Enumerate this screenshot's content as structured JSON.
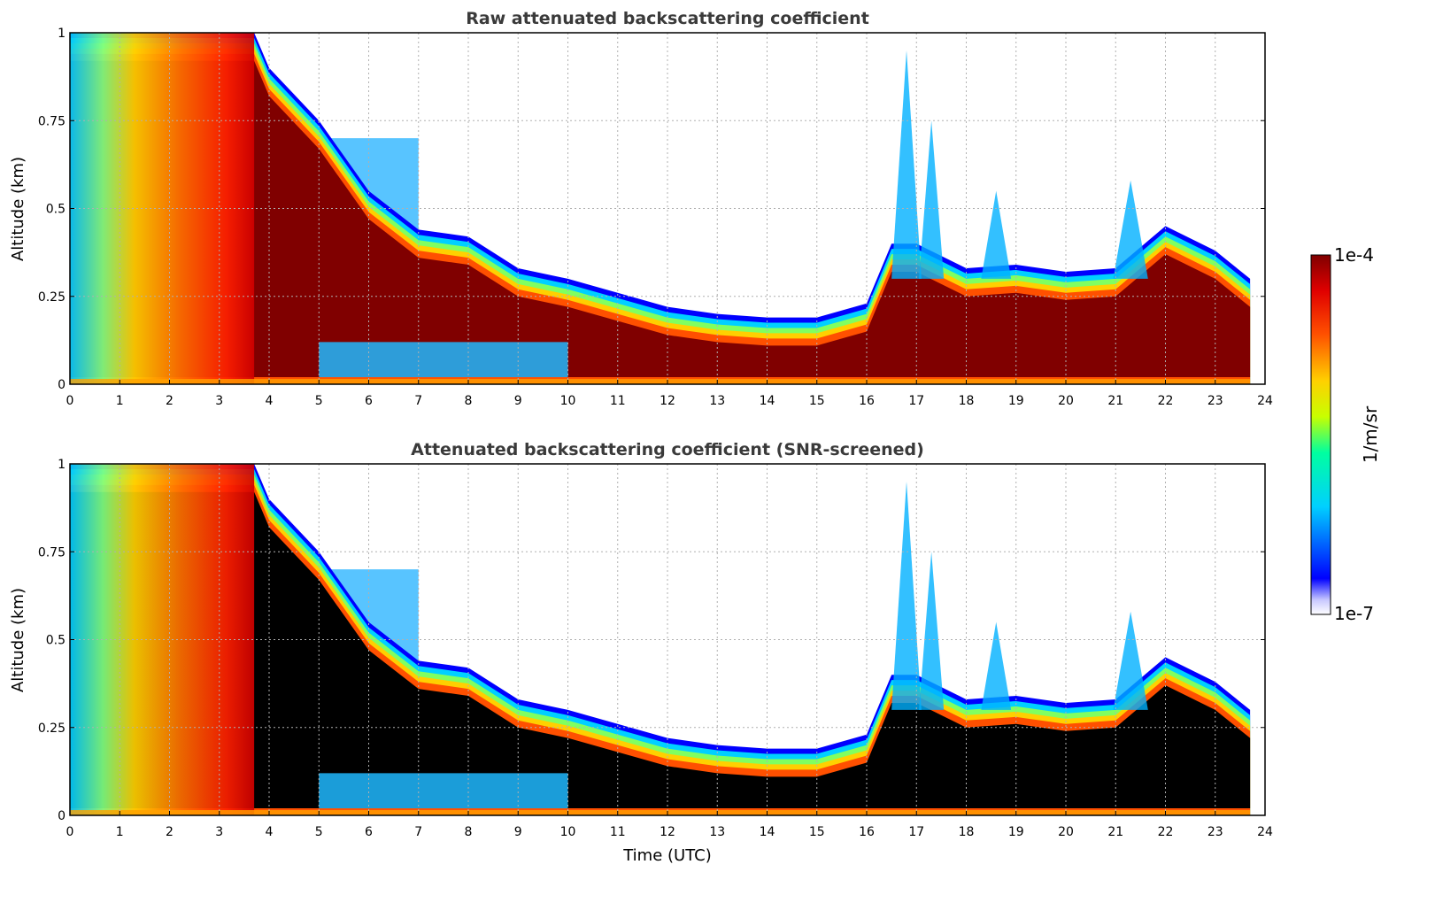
{
  "figure": {
    "colorbar": {
      "max_label": "1e-4",
      "min_label": "1e-7",
      "unit_label": "1/m/sr",
      "scale": "log",
      "colormap": "jet (white at minimum)"
    },
    "xlabel": "Time (UTC)"
  },
  "chart_data": [
    {
      "type": "heatmap",
      "title": "Raw attenuated backscattering coefficient",
      "xlabel": "",
      "ylabel": "Altitude (km)",
      "xlim": [
        0,
        24
      ],
      "ylim": [
        0,
        1
      ],
      "xticks": [
        "0",
        "1",
        "2",
        "3",
        "4",
        "5",
        "6",
        "7",
        "8",
        "9",
        "10",
        "11",
        "12",
        "13",
        "14",
        "15",
        "16",
        "17",
        "18",
        "19",
        "20",
        "21",
        "22",
        "23",
        "24"
      ],
      "yticks": [
        "0",
        "0.25",
        "0.5",
        "0.75",
        "1"
      ],
      "grid": true,
      "boundary_layer_top_km": {
        "x": [
          0,
          3.7,
          4,
          5,
          6,
          7,
          8,
          9,
          10,
          11,
          12,
          13,
          14,
          15,
          16,
          16.5,
          17,
          18,
          19,
          20,
          21,
          22,
          23,
          23.7
        ],
        "y": [
          1.0,
          1.0,
          0.9,
          0.75,
          0.55,
          0.44,
          0.42,
          0.33,
          0.3,
          0.26,
          0.22,
          0.2,
          0.19,
          0.19,
          0.23,
          0.4,
          0.4,
          0.33,
          0.34,
          0.32,
          0.33,
          0.45,
          0.38,
          0.3
        ]
      }
    },
    {
      "type": "heatmap",
      "title": "Attenuated backscattering coefficient (SNR-screened)",
      "xlabel": "Time (UTC)",
      "ylabel": "Altitude (km)",
      "xlim": [
        0,
        24
      ],
      "ylim": [
        0,
        1
      ],
      "xticks": [
        "0",
        "1",
        "2",
        "3",
        "4",
        "5",
        "6",
        "7",
        "8",
        "9",
        "10",
        "11",
        "12",
        "13",
        "14",
        "15",
        "16",
        "17",
        "18",
        "19",
        "20",
        "21",
        "22",
        "23",
        "24"
      ],
      "yticks": [
        "0",
        "0.25",
        "0.5",
        "0.75",
        "1"
      ],
      "grid": true,
      "saturated_region_color": "#000000"
    }
  ]
}
